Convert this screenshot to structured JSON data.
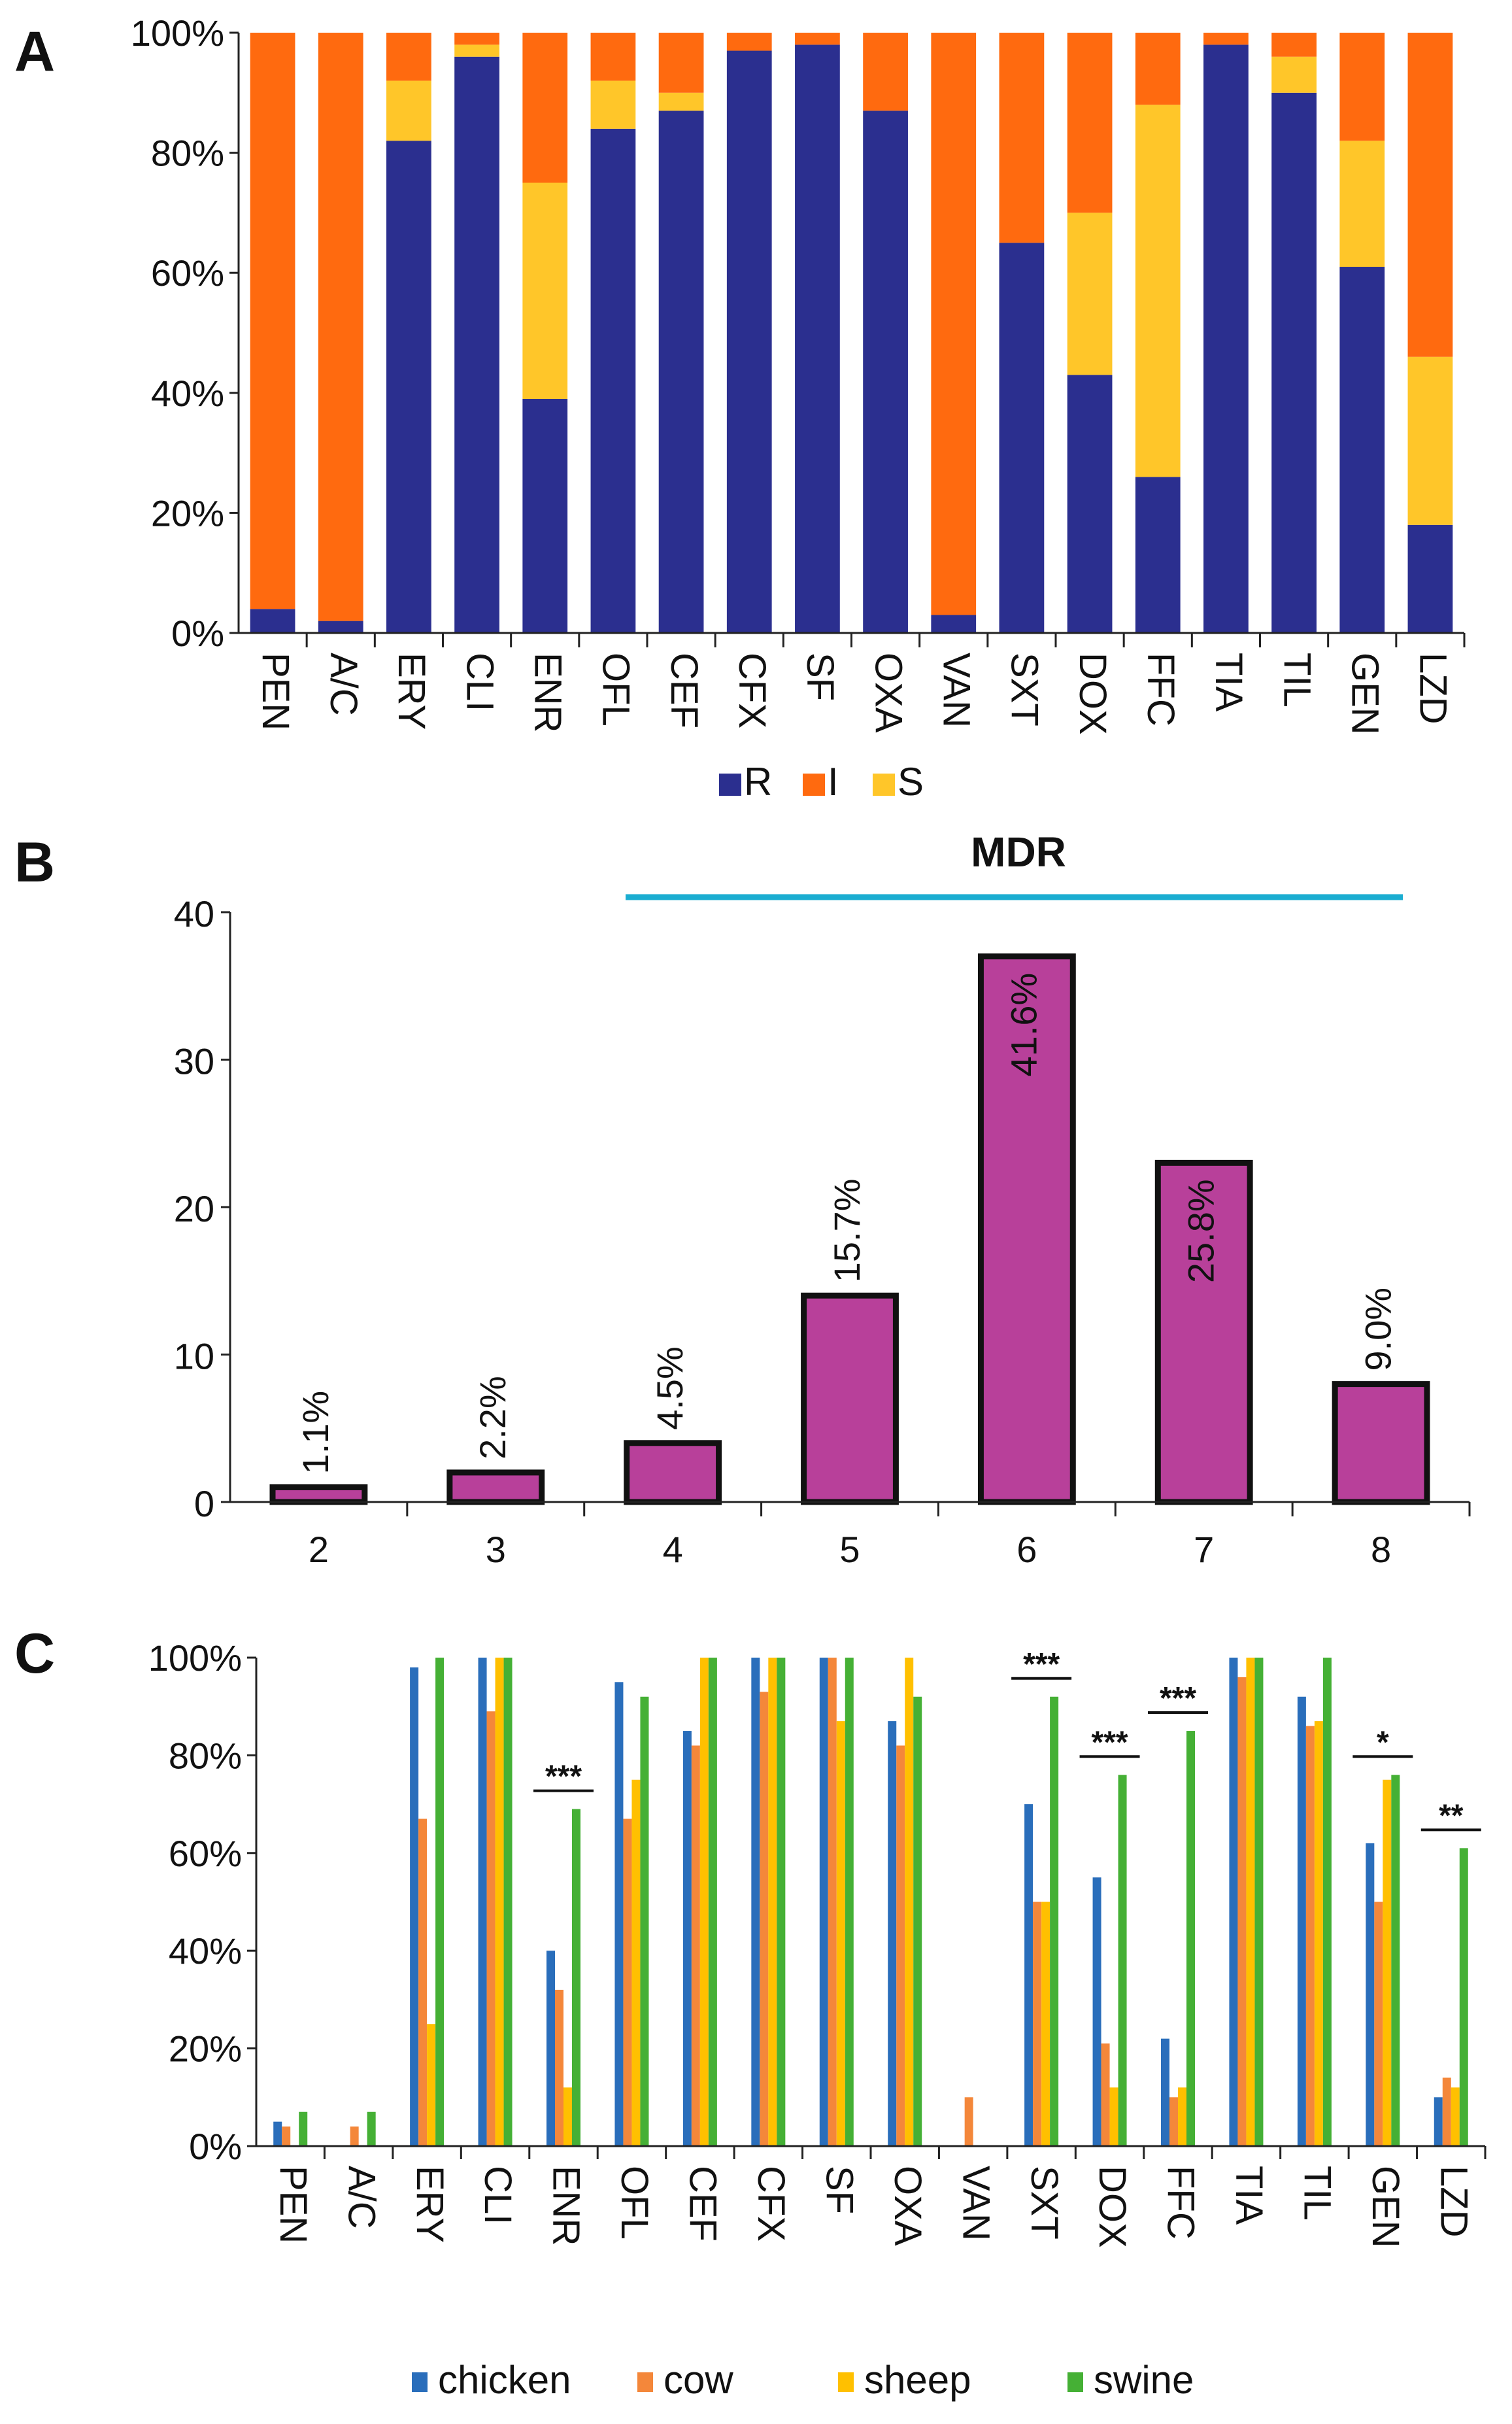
{
  "panels": {
    "a": {
      "letter": "A"
    },
    "b": {
      "letter": "B",
      "mdr_label": "MDR"
    },
    "c": {
      "letter": "C"
    }
  },
  "colors": {
    "R": "#2B2F8F",
    "I": "#FF6A0F",
    "S": "#FFC629",
    "bar_b": "#B8409A",
    "chicken": "#2A6EBB",
    "cow": "#F4873A",
    "sheep": "#FFC000",
    "swine": "#45B035",
    "mdr_line": "#1AADD1"
  },
  "chart_data": [
    {
      "type": "bar",
      "stacked": true,
      "title": "",
      "categories": [
        "PEN",
        "A/C",
        "ERY",
        "CLI",
        "ENR",
        "OFL",
        "CEF",
        "CFX",
        "SF",
        "OXA",
        "VAN",
        "SXT",
        "DOX",
        "FFC",
        "TIA",
        "TIL",
        "GEN",
        "LZD"
      ],
      "series": [
        {
          "name": "R",
          "key": "R",
          "values": [
            4,
            2,
            82,
            96,
            39,
            84,
            87,
            97,
            98,
            87,
            3,
            65,
            43,
            26,
            98,
            90,
            61,
            18
          ]
        },
        {
          "name": "S",
          "key": "S",
          "values": [
            0,
            0,
            10,
            2,
            36,
            8,
            3,
            0,
            0,
            0,
            0,
            0,
            27,
            62,
            0,
            6,
            21,
            28
          ]
        },
        {
          "name": "I",
          "key": "I",
          "values": [
            96,
            98,
            8,
            2,
            25,
            8,
            10,
            3,
            2,
            13,
            97,
            35,
            30,
            12,
            2,
            4,
            18,
            54
          ]
        }
      ],
      "legend": [
        "R",
        "I",
        "S"
      ],
      "yticks": [
        "0%",
        "20%",
        "40%",
        "60%",
        "80%",
        "100%"
      ],
      "ylim": [
        0,
        100
      ]
    },
    {
      "type": "bar",
      "title": "",
      "categories": [
        "2",
        "3",
        "4",
        "5",
        "6",
        "7",
        "8"
      ],
      "values": [
        1,
        2,
        4,
        14,
        37,
        23,
        8
      ],
      "labels": [
        "1.1%",
        "2.2%",
        "4.5%",
        "15.7%",
        "41.6%",
        "25.8%",
        "9.0%"
      ],
      "yticks": [
        "0",
        "10",
        "20",
        "30",
        "40"
      ],
      "ylim": [
        0,
        40
      ],
      "annotation": {
        "text": "MDR",
        "from_category": "4",
        "to_category": "8"
      }
    },
    {
      "type": "bar",
      "title": "",
      "categories": [
        "PEN",
        "A/C",
        "ERY",
        "CLI",
        "ENR",
        "OFL",
        "CEF",
        "CFX",
        "SF",
        "OXA",
        "VAN",
        "SXT",
        "DOX",
        "FFC",
        "TIA",
        "TIL",
        "GEN",
        "LZD"
      ],
      "series": [
        {
          "name": "chicken",
          "key": "chicken",
          "values": [
            5,
            0,
            98,
            100,
            40,
            95,
            85,
            100,
            100,
            87,
            0,
            70,
            55,
            22,
            100,
            92,
            62,
            10
          ]
        },
        {
          "name": "cow",
          "key": "cow",
          "values": [
            4,
            4,
            67,
            89,
            32,
            67,
            82,
            93,
            100,
            82,
            10,
            50,
            21,
            10,
            96,
            86,
            50,
            14
          ]
        },
        {
          "name": "sheep",
          "key": "sheep",
          "values": [
            0,
            0,
            25,
            100,
            12,
            75,
            100,
            100,
            87,
            100,
            0,
            50,
            12,
            12,
            100,
            87,
            75,
            12
          ]
        },
        {
          "name": "swine",
          "key": "swine",
          "values": [
            7,
            7,
            100,
            100,
            69,
            92,
            100,
            100,
            100,
            92,
            0,
            92,
            76,
            85,
            100,
            100,
            76,
            61
          ]
        }
      ],
      "significance": [
        {
          "category": "ENR",
          "label": "***"
        },
        {
          "category": "SXT",
          "label": "***"
        },
        {
          "category": "DOX",
          "label": "***"
        },
        {
          "category": "FFC",
          "label": "***"
        },
        {
          "category": "GEN",
          "label": "*"
        },
        {
          "category": "LZD",
          "label": "**"
        }
      ],
      "yticks": [
        "0%",
        "20%",
        "40%",
        "60%",
        "80%",
        "100%"
      ],
      "ylim": [
        0,
        100
      ]
    }
  ]
}
